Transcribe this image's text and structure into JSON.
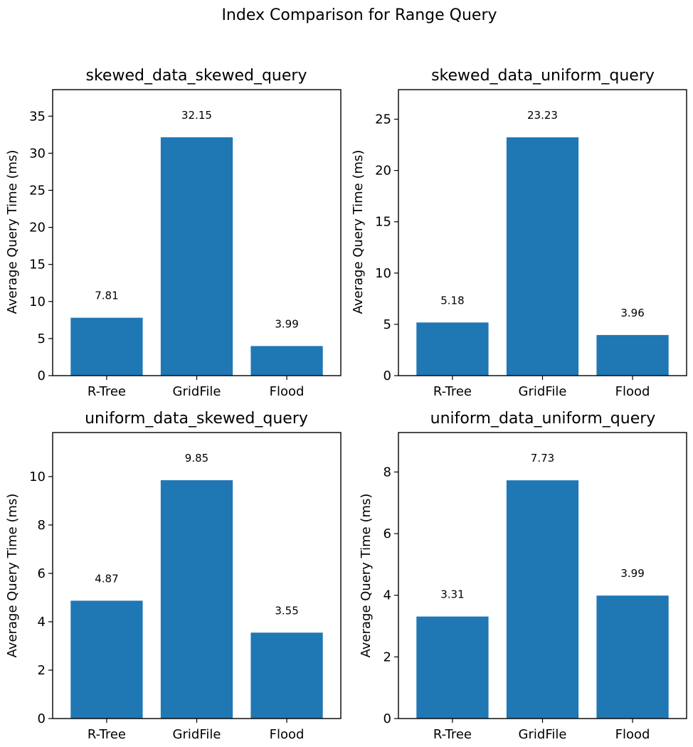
{
  "figure": {
    "title": "Index Comparison for Range Query",
    "bar_color": "#1f77b4"
  },
  "chart_data": [
    {
      "type": "bar",
      "title": "skewed_data_skewed_query",
      "xlabel": "",
      "ylabel": "Average Query Time (ms)",
      "categories": [
        "R-Tree",
        "GridFile",
        "Flood"
      ],
      "values": [
        7.81,
        32.15,
        3.99
      ],
      "data_labels": [
        "7.81",
        "32.15",
        "3.99"
      ],
      "ylim": [
        0,
        38.58
      ],
      "yticks": [
        0,
        5,
        10,
        15,
        20,
        25,
        30,
        35
      ],
      "grid": false,
      "legend": "none"
    },
    {
      "type": "bar",
      "title": "skewed_data_uniform_query",
      "xlabel": "",
      "ylabel": "Average Query Time (ms)",
      "categories": [
        "R-Tree",
        "GridFile",
        "Flood"
      ],
      "values": [
        5.18,
        23.23,
        3.96
      ],
      "data_labels": [
        "5.18",
        "23.23",
        "3.96"
      ],
      "ylim": [
        0,
        27.88
      ],
      "yticks": [
        0,
        5,
        10,
        15,
        20,
        25
      ],
      "grid": false,
      "legend": "none"
    },
    {
      "type": "bar",
      "title": "uniform_data_skewed_query",
      "xlabel": "",
      "ylabel": "Average Query Time (ms)",
      "categories": [
        "R-Tree",
        "GridFile",
        "Flood"
      ],
      "values": [
        4.87,
        9.85,
        3.55
      ],
      "data_labels": [
        "4.87",
        "9.85",
        "3.55"
      ],
      "ylim": [
        0,
        11.82
      ],
      "yticks": [
        0,
        2,
        4,
        6,
        8,
        10
      ],
      "grid": false,
      "legend": "none"
    },
    {
      "type": "bar",
      "title": "uniform_data_uniform_query",
      "xlabel": "",
      "ylabel": "Average Query Time (ms)",
      "categories": [
        "R-Tree",
        "GridFile",
        "Flood"
      ],
      "values": [
        3.31,
        7.73,
        3.99
      ],
      "data_labels": [
        "3.31",
        "7.73",
        "3.99"
      ],
      "ylim": [
        0,
        9.28
      ],
      "yticks": [
        0,
        2,
        4,
        6,
        8
      ],
      "grid": false,
      "legend": "none"
    }
  ]
}
